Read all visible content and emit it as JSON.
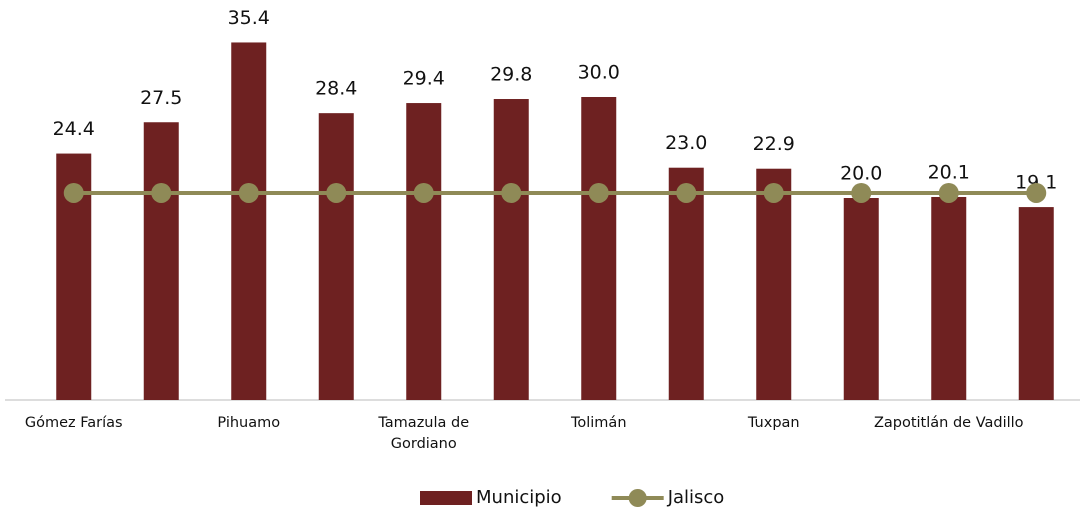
{
  "chart_data": {
    "type": "bar",
    "categories": [
      "Gómez Farías",
      null,
      "Pihuamo",
      null,
      "Tamazula de Gordiano",
      null,
      "Tolimán",
      null,
      "Tuxpan",
      null,
      "Zapotitlán de Vadillo",
      null
    ],
    "series": [
      {
        "name": "Municipio",
        "type": "bar",
        "color": "#6e2121",
        "values": [
          24.4,
          27.5,
          35.4,
          28.4,
          29.4,
          29.8,
          30.0,
          23.0,
          22.9,
          20.0,
          20.1,
          19.1
        ],
        "value_labels": [
          "24.4",
          "27.5",
          "35.4",
          "28.4",
          "29.4",
          "29.8",
          "30.0",
          "23.0",
          "22.9",
          "20.0",
          "20.1",
          "19.1"
        ]
      },
      {
        "name": "Jalisco",
        "type": "line",
        "color": "#8f8a57",
        "values": [
          20.5,
          20.5,
          20.5,
          20.5,
          20.5,
          20.5,
          20.5,
          20.5,
          20.5,
          20.5,
          20.5,
          20.5
        ]
      }
    ],
    "ylim": [
      0,
      40
    ],
    "legend": "bottom"
  }
}
